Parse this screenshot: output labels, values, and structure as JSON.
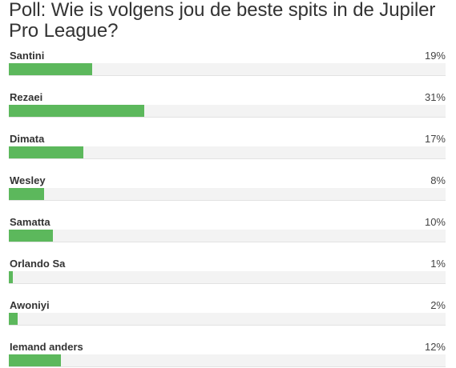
{
  "poll": {
    "title": "Poll: Wie is volgens jou de beste spits in de Jupiler Pro League?",
    "bar_color": "#5cb85c",
    "options": [
      {
        "label": "Santini",
        "percent_text": "19%",
        "value": 19
      },
      {
        "label": "Rezaei",
        "percent_text": "31%",
        "value": 31
      },
      {
        "label": "Dimata",
        "percent_text": "17%",
        "value": 17
      },
      {
        "label": "Wesley",
        "percent_text": "8%",
        "value": 8
      },
      {
        "label": "Samatta",
        "percent_text": "10%",
        "value": 10
      },
      {
        "label": "Orlando Sa",
        "percent_text": "1%",
        "value": 1
      },
      {
        "label": "Awoniyi",
        "percent_text": "2%",
        "value": 2
      },
      {
        "label": "Iemand anders",
        "percent_text": "12%",
        "value": 12
      }
    ]
  }
}
